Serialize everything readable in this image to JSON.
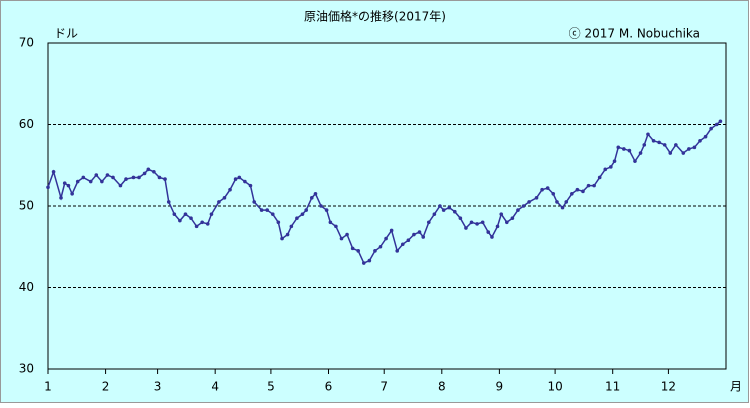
{
  "chart_data": {
    "type": "line",
    "title": "原油価格*の推移(2017年)",
    "y_unit": "ドル",
    "x_unit": "月",
    "copyright": "ⓒ 2017 M. Nobuchika",
    "color": "#333399",
    "grid": true,
    "grid_style": "dashed",
    "xlim": [
      1,
      366
    ],
    "ylim": [
      30,
      70
    ],
    "yticks": [
      30,
      40,
      50,
      60,
      70
    ],
    "xticks": [
      {
        "value": 1,
        "label": "1"
      },
      {
        "value": 32,
        "label": "2"
      },
      {
        "value": 60,
        "label": "3"
      },
      {
        "value": 91,
        "label": "4"
      },
      {
        "value": 121,
        "label": "5"
      },
      {
        "value": 152,
        "label": "6"
      },
      {
        "value": 182,
        "label": "7"
      },
      {
        "value": 213,
        "label": "8"
      },
      {
        "value": 244,
        "label": "9"
      },
      {
        "value": 274,
        "label": "10"
      },
      {
        "value": 305,
        "label": "11"
      },
      {
        "value": 335,
        "label": "12"
      }
    ],
    "x": [
      1,
      4,
      8,
      10,
      12,
      14,
      17,
      20,
      24,
      27,
      30,
      33,
      36,
      40,
      43,
      47,
      50,
      53,
      55,
      58,
      61,
      64,
      66,
      69,
      72,
      75,
      78,
      81,
      84,
      87,
      89,
      93,
      96,
      99,
      102,
      104,
      107,
      110,
      112,
      116,
      119,
      122,
      125,
      127,
      130,
      132,
      135,
      138,
      140,
      143,
      145,
      148,
      151,
      153,
      156,
      159,
      162,
      165,
      168,
      171,
      174,
      177,
      180,
      183,
      186,
      189,
      192,
      195,
      198,
      201,
      203,
      206,
      209,
      212,
      214,
      217,
      220,
      223,
      226,
      229,
      232,
      235,
      238,
      240,
      243,
      245,
      248,
      251,
      254,
      257,
      260,
      264,
      267,
      270,
      273,
      275,
      278,
      280,
      283,
      286,
      289,
      292,
      295,
      298,
      301,
      304,
      306,
      308,
      311,
      314,
      317,
      320,
      322,
      324,
      327,
      330,
      333,
      336,
      339,
      343,
      346,
      349,
      352,
      355,
      358,
      361,
      363
    ],
    "values": [
      52.3,
      54.2,
      51,
      52.8,
      52.5,
      51.5,
      53,
      53.5,
      53,
      53.8,
      53,
      53.8,
      53.5,
      52.5,
      53.3,
      53.5,
      53.5,
      54,
      54.5,
      54.2,
      53.5,
      53.3,
      50.5,
      49,
      48.2,
      49,
      48.5,
      47.5,
      48,
      47.8,
      49,
      50.5,
      51,
      52,
      53.3,
      53.5,
      53,
      52.5,
      50.5,
      49.5,
      49.5,
      49,
      48,
      46,
      46.5,
      47.5,
      48.5,
      49,
      49.5,
      51,
      51.5,
      50,
      49.5,
      48,
      47.5,
      46,
      46.5,
      44.8,
      44.5,
      43,
      43.3,
      44.5,
      45,
      46,
      47,
      44.5,
      45.3,
      45.8,
      46.5,
      46.8,
      46.2,
      48,
      49,
      50,
      49.5,
      49.8,
      49.3,
      48.5,
      47.3,
      48,
      47.8,
      48,
      46.8,
      46.2,
      47.5,
      49,
      48,
      48.5,
      49.5,
      50,
      50.5,
      51,
      52,
      52.2,
      51.5,
      50.5,
      49.8,
      50.5,
      51.5,
      52,
      51.8,
      52.5,
      52.5,
      53.5,
      54.5,
      54.8,
      55.5,
      57.2,
      57,
      56.8,
      55.5,
      56.5,
      57.5,
      58.8,
      58,
      57.8,
      57.5,
      56.5,
      57.5,
      56.5,
      57,
      57.2,
      58,
      58.5,
      59.5,
      60,
      60.4
    ]
  }
}
